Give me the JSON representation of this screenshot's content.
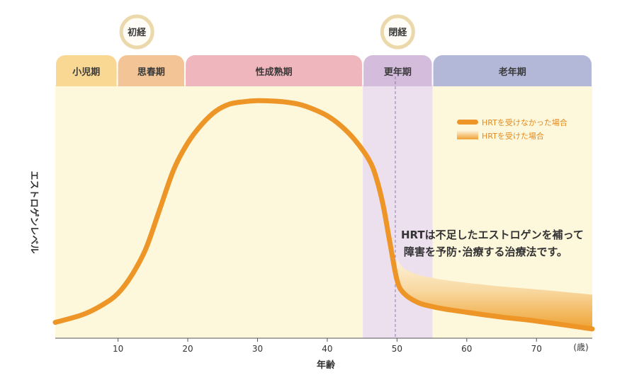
{
  "chart_data": {
    "type": "line",
    "ylabel": "エストロゲンレベル",
    "xlabel": "年齢",
    "x_unit": "(歳)",
    "xlim": [
      1,
      78
    ],
    "ylim": [
      0,
      100
    ],
    "x_ticks": [
      10,
      20,
      30,
      40,
      50,
      60,
      70
    ],
    "life_stages": [
      {
        "label": "小児期",
        "start": 1,
        "end": 9.9,
        "color": "#f9d893",
        "band": "#fdf8dc"
      },
      {
        "label": "思春期",
        "start": 9.9,
        "end": 19.6,
        "color": "#f3c496",
        "band": "#fdf8dc"
      },
      {
        "label": "性成熟期",
        "start": 19.6,
        "end": 45.1,
        "color": "#efb7bd",
        "band": "#fdf8dc"
      },
      {
        "label": "更年期",
        "start": 45.1,
        "end": 55.1,
        "color": "#d4bcdc",
        "band": "#ece0ef"
      },
      {
        "label": "老年期",
        "start": 55.1,
        "end": 78,
        "color": "#b4b8d8",
        "band": "#fdf8dc"
      }
    ],
    "events": [
      {
        "label": "初経",
        "x": 12.7
      },
      {
        "label": "閉経",
        "x": 50.1
      }
    ],
    "legend": [
      {
        "label": "HRTを受けなかった場合",
        "color": "#ed9527"
      },
      {
        "label": "HRTを受けた場合",
        "color": "#f4b966"
      }
    ],
    "series": [
      {
        "name": "HRTを受けなかった場合",
        "x": [
          1,
          5,
          8,
          10,
          12,
          14,
          16,
          18,
          20,
          22,
          24,
          26,
          28,
          30,
          32,
          34,
          36,
          38,
          40,
          42,
          44,
          46,
          47,
          48,
          49,
          50,
          51,
          53,
          55,
          57,
          60,
          65,
          70,
          78
        ],
        "y": [
          6,
          9,
          13,
          17,
          24,
          34,
          49,
          64,
          74,
          81,
          86,
          88.7,
          89.6,
          90,
          89.9,
          89.5,
          88.6,
          86.8,
          84.3,
          80.4,
          75,
          67.5,
          61,
          50.5,
          36,
          22,
          17,
          13.5,
          12,
          11,
          9.8,
          8,
          6.5,
          3.5
        ]
      },
      {
        "name": "HRTを受けた場合",
        "x": [
          50,
          51,
          53,
          55,
          57,
          60,
          65,
          70,
          78
        ],
        "y": [
          30,
          26.5,
          24.1,
          22.9,
          22,
          21,
          19.6,
          18.5,
          16.5
        ]
      }
    ],
    "annotation": [
      "HRTは不足したエストロゲンを補って",
      "障害を予防･治療する治療法です。"
    ]
  }
}
